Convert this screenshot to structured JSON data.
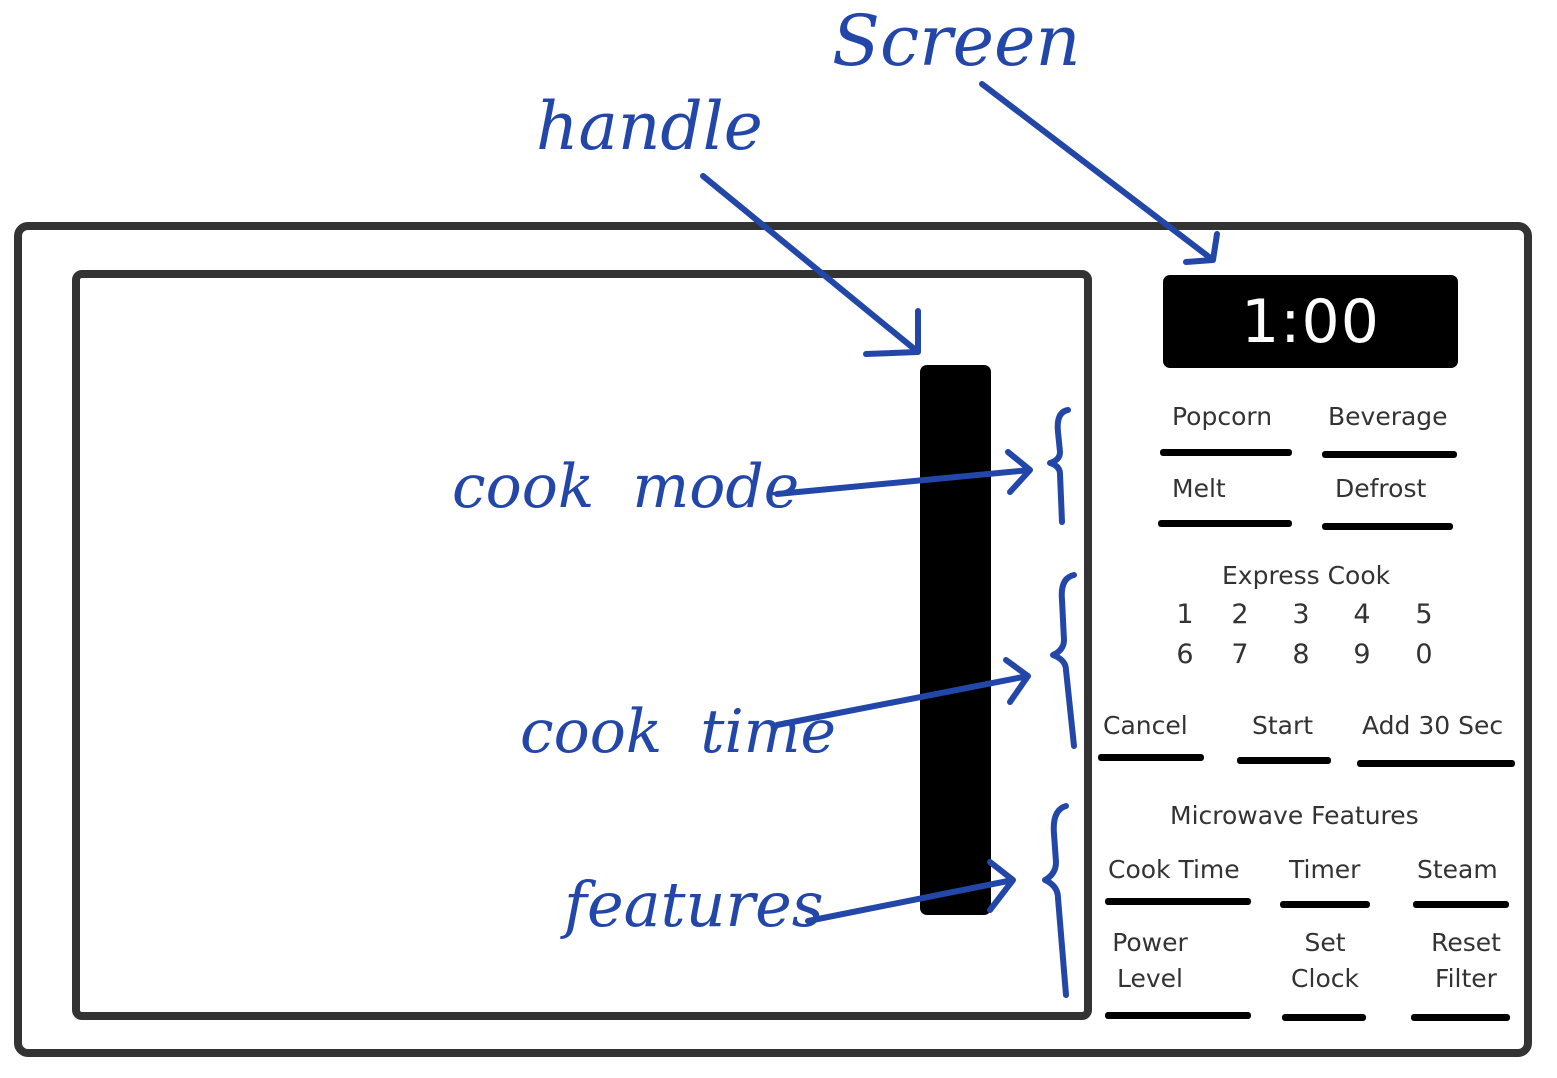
{
  "display": {
    "time": "1:00"
  },
  "cook_modes": {
    "popcorn": "Popcorn",
    "beverage": "Beverage",
    "melt": "Melt",
    "defrost": "Defrost"
  },
  "express_cook": {
    "title": "Express Cook",
    "digits": [
      "1",
      "2",
      "3",
      "4",
      "5",
      "6",
      "7",
      "8",
      "9",
      "0"
    ]
  },
  "controls": {
    "cancel": "Cancel",
    "start": "Start",
    "add30": "Add 30 Sec"
  },
  "features": {
    "title": "Microwave Features",
    "cook_time": "Cook Time",
    "timer": "Timer",
    "steam": "Steam",
    "power_level": "Power\nLevel",
    "set_clock": "Set\nClock",
    "reset_filter": "Reset\nFilter"
  },
  "annotations": {
    "screen": "Screen",
    "handle": "handle",
    "cook_mode": "cook  mode",
    "cook_time": "cook  time",
    "features": "features"
  },
  "colors": {
    "ink": "#2347a8",
    "outline": "#333333",
    "panel": "#000000"
  }
}
